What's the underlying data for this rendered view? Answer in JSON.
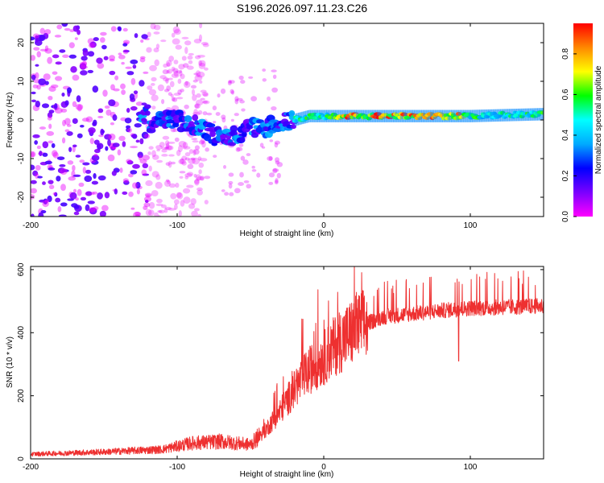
{
  "title": "S196.2026.097.11.23.C26",
  "colors": {
    "snr_line": "#ee3030",
    "axis": "#000000",
    "background": "#ffffff"
  },
  "colormap": [
    "#ff00ff",
    "#7a00ff",
    "#0000ff",
    "#00aaff",
    "#00ffff",
    "#00ff00",
    "#ffff00",
    "#ff8800",
    "#ff0000"
  ],
  "chart_data": [
    {
      "type": "heatmap",
      "xlabel": "Height of straight line (km)",
      "ylabel": "Frequency (Hz)",
      "xlim": [
        -200,
        150
      ],
      "ylim": [
        -25,
        25
      ],
      "xticks": [
        -200,
        -100,
        0,
        100
      ],
      "yticks": [
        -20,
        -10,
        0,
        10,
        20
      ],
      "colorbar": {
        "label": "Normalized spectral amplitude",
        "range": [
          0,
          0.95
        ],
        "ticks": [
          0.0,
          0.2,
          0.4,
          0.6,
          0.8
        ]
      },
      "ridge": [
        {
          "x": -120,
          "y": -1
        },
        {
          "x": -110,
          "y": 0
        },
        {
          "x": -100,
          "y": 0
        },
        {
          "x": -90,
          "y": -1
        },
        {
          "x": -80,
          "y": -3
        },
        {
          "x": -70,
          "y": -5
        },
        {
          "x": -60,
          "y": -4
        },
        {
          "x": -50,
          "y": -2
        },
        {
          "x": -40,
          "y": -2
        },
        {
          "x": -30,
          "y": -1
        },
        {
          "x": -20,
          "y": 0
        },
        {
          "x": -10,
          "y": 1
        },
        {
          "x": 0,
          "y": 1
        },
        {
          "x": 50,
          "y": 1
        },
        {
          "x": 100,
          "y": 1
        },
        {
          "x": 150,
          "y": 1.5
        }
      ],
      "noise_region": [
        -200,
        -120
      ],
      "high_amplitude_region": [
        5,
        95
      ]
    },
    {
      "type": "line",
      "xlabel": "Height of straight line (km)",
      "ylabel": "SNR (10 * v/v)",
      "xlim": [
        -200,
        150
      ],
      "ylim": [
        0,
        610
      ],
      "xticks": [
        -200,
        -100,
        0,
        100
      ],
      "yticks": [
        0,
        200,
        400,
        600
      ],
      "trend": [
        {
          "x": -200,
          "y": 15
        },
        {
          "x": -150,
          "y": 22
        },
        {
          "x": -110,
          "y": 30
        },
        {
          "x": -90,
          "y": 50
        },
        {
          "x": -70,
          "y": 55
        },
        {
          "x": -50,
          "y": 45
        },
        {
          "x": -40,
          "y": 90
        },
        {
          "x": -30,
          "y": 150
        },
        {
          "x": -20,
          "y": 220
        },
        {
          "x": -10,
          "y": 280
        },
        {
          "x": 0,
          "y": 320
        },
        {
          "x": 10,
          "y": 370
        },
        {
          "x": 25,
          "y": 420
        },
        {
          "x": 40,
          "y": 450
        },
        {
          "x": 60,
          "y": 460
        },
        {
          "x": 80,
          "y": 470
        },
        {
          "x": 100,
          "y": 478
        },
        {
          "x": 120,
          "y": 480
        },
        {
          "x": 150,
          "y": 485
        }
      ],
      "dropout": {
        "x": 92,
        "y": 310
      }
    }
  ]
}
